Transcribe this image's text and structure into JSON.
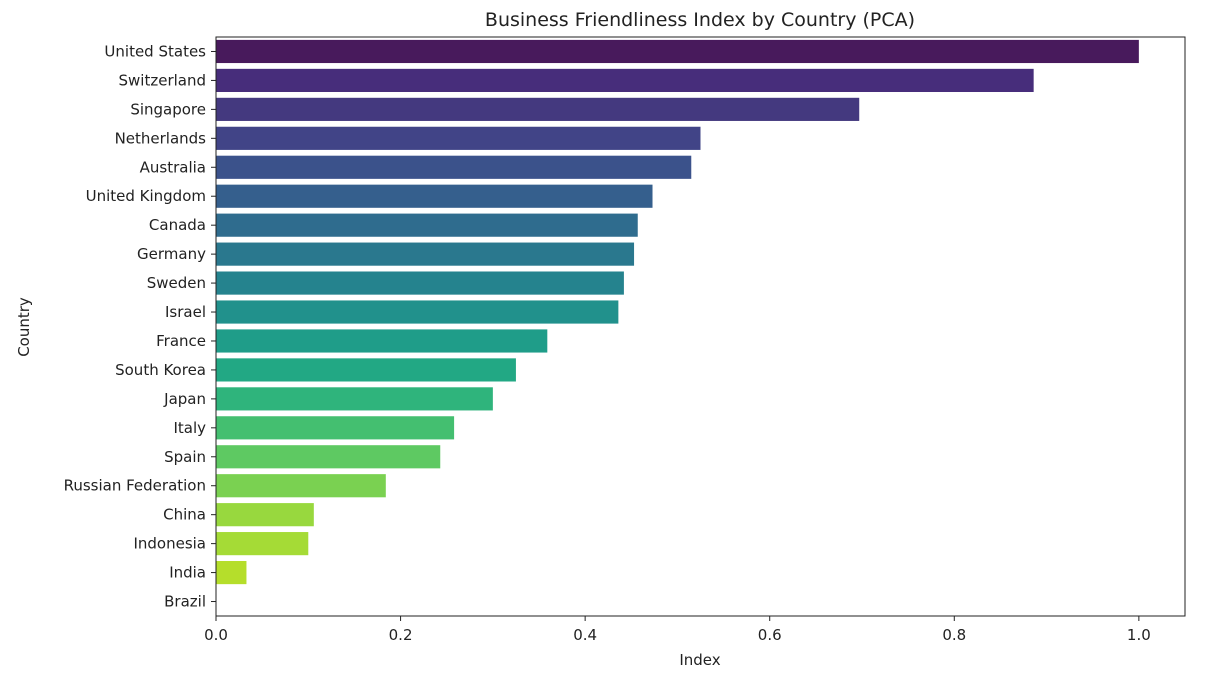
{
  "chart_data": {
    "type": "bar",
    "orientation": "horizontal",
    "title": "Business Friendliness Index by Country (PCA)",
    "xlabel": "Index",
    "ylabel": "Country",
    "xlim": [
      0,
      1.05
    ],
    "x_ticks": [
      "0.0",
      "0.2",
      "0.4",
      "0.6",
      "0.8",
      "1.0"
    ],
    "grid": false,
    "colormap": "viridis",
    "categories": [
      "United States",
      "Switzerland",
      "Singapore",
      "Netherlands",
      "Australia",
      "United Kingdom",
      "Canada",
      "Germany",
      "Sweden",
      "Israel",
      "France",
      "South Korea",
      "Japan",
      "Italy",
      "Spain",
      "Russian Federation",
      "China",
      "Indonesia",
      "India",
      "Brazil"
    ],
    "values": [
      1.0,
      0.886,
      0.697,
      0.525,
      0.515,
      0.473,
      0.457,
      0.453,
      0.442,
      0.436,
      0.359,
      0.325,
      0.3,
      0.258,
      0.243,
      0.184,
      0.106,
      0.1,
      0.033,
      0.0
    ],
    "colors": [
      "#481a5c",
      "#472d7b",
      "#44397f",
      "#414487",
      "#3b528b",
      "#355f8d",
      "#2f6c8e",
      "#2a788e",
      "#25838e",
      "#21918c",
      "#1f9d89",
      "#22a884",
      "#2fb47c",
      "#44bf70",
      "#5ec962",
      "#7ad151",
      "#98d83e",
      "#a5db36",
      "#b5de2b",
      "#c8e020"
    ]
  }
}
